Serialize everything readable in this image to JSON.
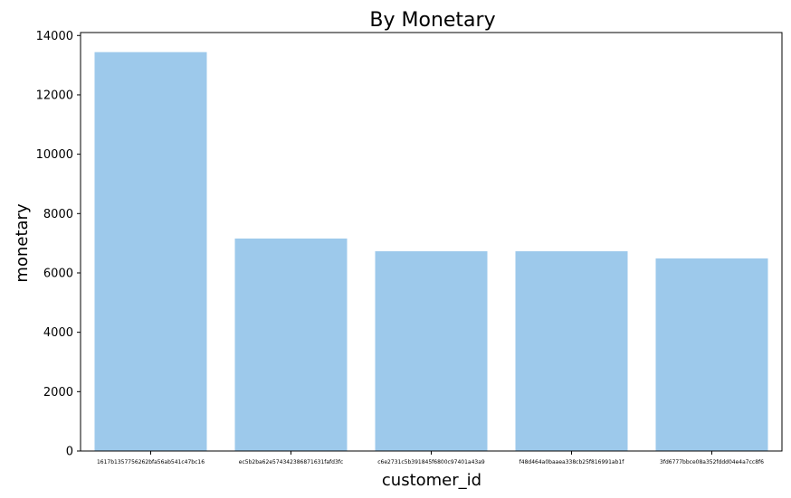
{
  "chart_data": {
    "type": "bar",
    "title": "By Monetary",
    "xlabel": "customer_id",
    "ylabel": "monetary",
    "categories": [
      "1617b1357756262bfa56ab541c47bc16",
      "ec5b2ba62e574342386871631fafd3fc",
      "c6e2731c5b391845f6800c97401a43a9",
      "f48d464a0baaea338cb25f816991ab1f",
      "3fd6777bbce08a352fddd04e4a7cc8f6"
    ],
    "values": [
      13440,
      7160,
      6730,
      6730,
      6490
    ],
    "ylim": [
      0,
      14100
    ],
    "yticks": [
      0,
      2000,
      4000,
      6000,
      8000,
      10000,
      12000,
      14000
    ],
    "bar_color": "#9dc9eb",
    "grid": false,
    "legend": false
  }
}
